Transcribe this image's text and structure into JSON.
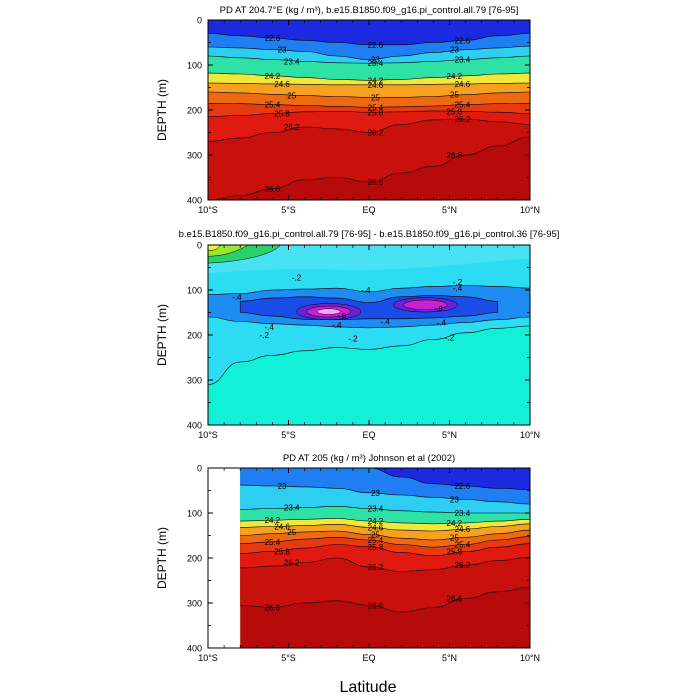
{
  "xlabel": "Latitude",
  "chart_data": [
    {
      "type": "contour",
      "title": "PD AT 204.7°E (kg / m³), b.e15.B1850.f09_g16.pi_control.all.79 [76-95]",
      "ylabel": "DEPTH (m)",
      "xlim": [
        -10,
        10
      ],
      "ylim": [
        400,
        0
      ],
      "x_ticks": [
        "10°S",
        "5°S",
        "EQ",
        "5°N",
        "10°N"
      ],
      "y_ticks": [
        "0",
        "100",
        "200",
        "300",
        "400"
      ],
      "isopycnals": [
        {
          "level": 22.6,
          "label": "22.6",
          "color": "#1b2ae0",
          "depths": [
            30,
            35,
            40,
            45,
            50,
            55,
            55,
            50,
            45,
            35,
            30
          ]
        },
        {
          "level": 23.0,
          "label": "23",
          "color": "#1f7ef2",
          "depths": [
            60,
            62,
            66,
            70,
            80,
            88,
            80,
            72,
            66,
            62,
            58
          ]
        },
        {
          "level": 23.4,
          "label": "23.4",
          "color": "#2ecdf2",
          "depths": [
            80,
            84,
            88,
            92,
            95,
            96,
            95,
            92,
            88,
            84,
            80
          ]
        },
        {
          "level": 24.2,
          "label": "24.2",
          "color": "#2de2a4",
          "depths": [
            118,
            120,
            124,
            128,
            132,
            134,
            132,
            128,
            124,
            120,
            118
          ]
        },
        {
          "level": 24.6,
          "label": "24.6",
          "color": "#f0e83a",
          "depths": [
            140,
            141,
            142,
            143,
            144,
            144,
            144,
            143,
            142,
            141,
            140
          ]
        },
        {
          "level": 25.0,
          "label": "25",
          "color": "#f6a220",
          "depths": [
            160,
            162,
            165,
            168,
            170,
            172,
            172,
            170,
            166,
            162,
            160
          ]
        },
        {
          "level": 25.4,
          "label": "25.4",
          "color": "#ee6a12",
          "depths": [
            185,
            186,
            188,
            190,
            192,
            194,
            193,
            191,
            188,
            186,
            185
          ]
        },
        {
          "level": 25.8,
          "label": "25.8",
          "color": "#e83a10",
          "depths": [
            215,
            212,
            208,
            204,
            203,
            205,
            204,
            202,
            203,
            205,
            208
          ]
        },
        {
          "level": 26.2,
          "label": "26.2",
          "color": "#e01a10",
          "depths": [
            270,
            262,
            250,
            238,
            242,
            250,
            232,
            222,
            220,
            226,
            232
          ]
        },
        {
          "level": 26.6,
          "label": "26.6",
          "color": "#c8100c",
          "depths": [
            400,
            390,
            375,
            355,
            350,
            360,
            340,
            325,
            300,
            280,
            260
          ]
        }
      ],
      "deep_color": "#b70b0b"
    },
    {
      "type": "contour",
      "title": "b.e15.B1850.f09_g16.pi_control.all.79 [76-95] - b.e15.B1850.f09_g16.pi_control.36 [76-95]",
      "ylabel": "DEPTH (m)",
      "xlim": [
        -10,
        10
      ],
      "ylim": [
        400,
        0
      ],
      "x_ticks": [
        "10°S",
        "5°S",
        "EQ",
        "5°N",
        "10°N"
      ],
      "y_ticks": [
        "0",
        "100",
        "200",
        "300",
        "400"
      ],
      "background_color": "#12f0d8",
      "bands": [
        {
          "label": "-.2",
          "color": "#2cdcf2",
          "top": [
            80,
            80,
            70,
            60,
            55,
            58,
            55,
            48,
            40,
            35,
            30
          ],
          "bottom": [
            310,
            260,
            245,
            235,
            228,
            232,
            224,
            210,
            195,
            185,
            180
          ]
        },
        {
          "label": "-.4",
          "color": "#1e8cf0",
          "top": [
            110,
            108,
            100,
            98,
            96,
            104,
            96,
            92,
            90,
            92,
            96
          ],
          "bottom": [
            160,
            170,
            175,
            178,
            182,
            184,
            182,
            178,
            172,
            166,
            160
          ]
        },
        {
          "label": "-.6",
          "color": "#1a4ce8",
          "top": [
            0,
            125,
            118,
            115,
            118,
            128,
            115,
            112,
            115,
            125,
            0
          ],
          "bottom": [
            0,
            150,
            158,
            165,
            166,
            164,
            164,
            162,
            158,
            150,
            0
          ]
        }
      ],
      "cores": [
        {
          "label": "-.8",
          "lat": -2.5,
          "depth": 148,
          "rx_deg": 2.0,
          "ry_m": 18,
          "colors": [
            "#6a22d8",
            "#c822d0",
            "#ff9cff"
          ]
        },
        {
          "label": "-.8",
          "lat": 3.5,
          "depth": 133,
          "rx_deg": 2.0,
          "ry_m": 16,
          "colors": [
            "#6a22d8",
            "#c822d0"
          ]
        }
      ],
      "surface_anomaly": {
        "label": "+",
        "colors": [
          "#f2ee3a",
          "#98e832",
          "#2ad06a"
        ]
      },
      "contour_labels": [
        {
          "text": "-.2",
          "lat": -4.5,
          "depth": 72
        },
        {
          "text": "-.2",
          "lat": 5.5,
          "depth": 82
        },
        {
          "text": "-.4",
          "lat": -8.2,
          "depth": 115
        },
        {
          "text": "-.4",
          "lat": -0.2,
          "depth": 100
        },
        {
          "text": "-.4",
          "lat": 5.5,
          "depth": 95
        },
        {
          "text": "-.4",
          "lat": -6.2,
          "depth": 182
        },
        {
          "text": "-.4",
          "lat": -2.0,
          "depth": 178
        },
        {
          "text": "-.4",
          "lat": 1.0,
          "depth": 170
        },
        {
          "text": "-.4",
          "lat": 4.5,
          "depth": 172
        },
        {
          "text": "-.2",
          "lat": -6.5,
          "depth": 200
        },
        {
          "text": "-.2",
          "lat": -1.0,
          "depth": 208
        },
        {
          "text": "-.2",
          "lat": 5.0,
          "depth": 206
        }
      ]
    },
    {
      "type": "contour",
      "title": "PD AT 205 (kg / m³) Johnson et al (2002)",
      "ylabel": "DEPTH (m)",
      "xlim": [
        -10,
        10
      ],
      "ylim": [
        400,
        0
      ],
      "data_start_lat": -8,
      "x_ticks": [
        "10°S",
        "5°S",
        "EQ",
        "5°N",
        "10°N"
      ],
      "y_ticks": [
        "0",
        "100",
        "200",
        "300",
        "400"
      ],
      "isopycnals": [
        {
          "level": 22.6,
          "label": "22.6",
          "color": "#1b2ae0",
          "depths": [
            0,
            0,
            0,
            0,
            0,
            0,
            20,
            35,
            40,
            45,
            48
          ]
        },
        {
          "level": 23.0,
          "label": "23",
          "color": "#1f7ef2",
          "depths": [
            35,
            38,
            40,
            42,
            45,
            55,
            60,
            65,
            70,
            75,
            80
          ]
        },
        {
          "level": 23.4,
          "label": "23.4",
          "color": "#2ecdf2",
          "depths": [
            95,
            92,
            90,
            88,
            85,
            90,
            95,
            98,
            100,
            100,
            100
          ]
        },
        {
          "level": 24.2,
          "label": "24.2",
          "color": "#2de2a4",
          "depths": [
            118,
            118,
            116,
            114,
            112,
            118,
            122,
            124,
            122,
            118,
            114
          ]
        },
        {
          "level": 24.6,
          "label": "24.6",
          "color": "#f0e83a",
          "depths": [
            132,
            132,
            130,
            128,
            125,
            132,
            138,
            140,
            136,
            130,
            124
          ]
        },
        {
          "level": 25.0,
          "label": "25",
          "color": "#f6a220",
          "depths": [
            150,
            150,
            146,
            142,
            140,
            148,
            156,
            160,
            154,
            146,
            138
          ]
        },
        {
          "level": 25.4,
          "label": "25.4",
          "color": "#ee6a12",
          "depths": [
            168,
            168,
            164,
            158,
            154,
            160,
            170,
            176,
            170,
            160,
            152
          ]
        },
        {
          "level": 25.8,
          "label": "25.8",
          "color": "#e83a10",
          "depths": [
            190,
            190,
            185,
            178,
            170,
            175,
            188,
            195,
            186,
            176,
            168
          ]
        },
        {
          "level": 26.2,
          "label": "26.2",
          "color": "#e01a10",
          "depths": [
            220,
            222,
            218,
            210,
            200,
            220,
            230,
            226,
            216,
            206,
            198
          ]
        },
        {
          "level": 26.6,
          "label": "26.6",
          "color": "#c8100c",
          "depths": [
            300,
            305,
            310,
            300,
            295,
            305,
            320,
            310,
            290,
            275,
            265
          ]
        }
      ],
      "deep_color": "#b70b0b"
    }
  ]
}
